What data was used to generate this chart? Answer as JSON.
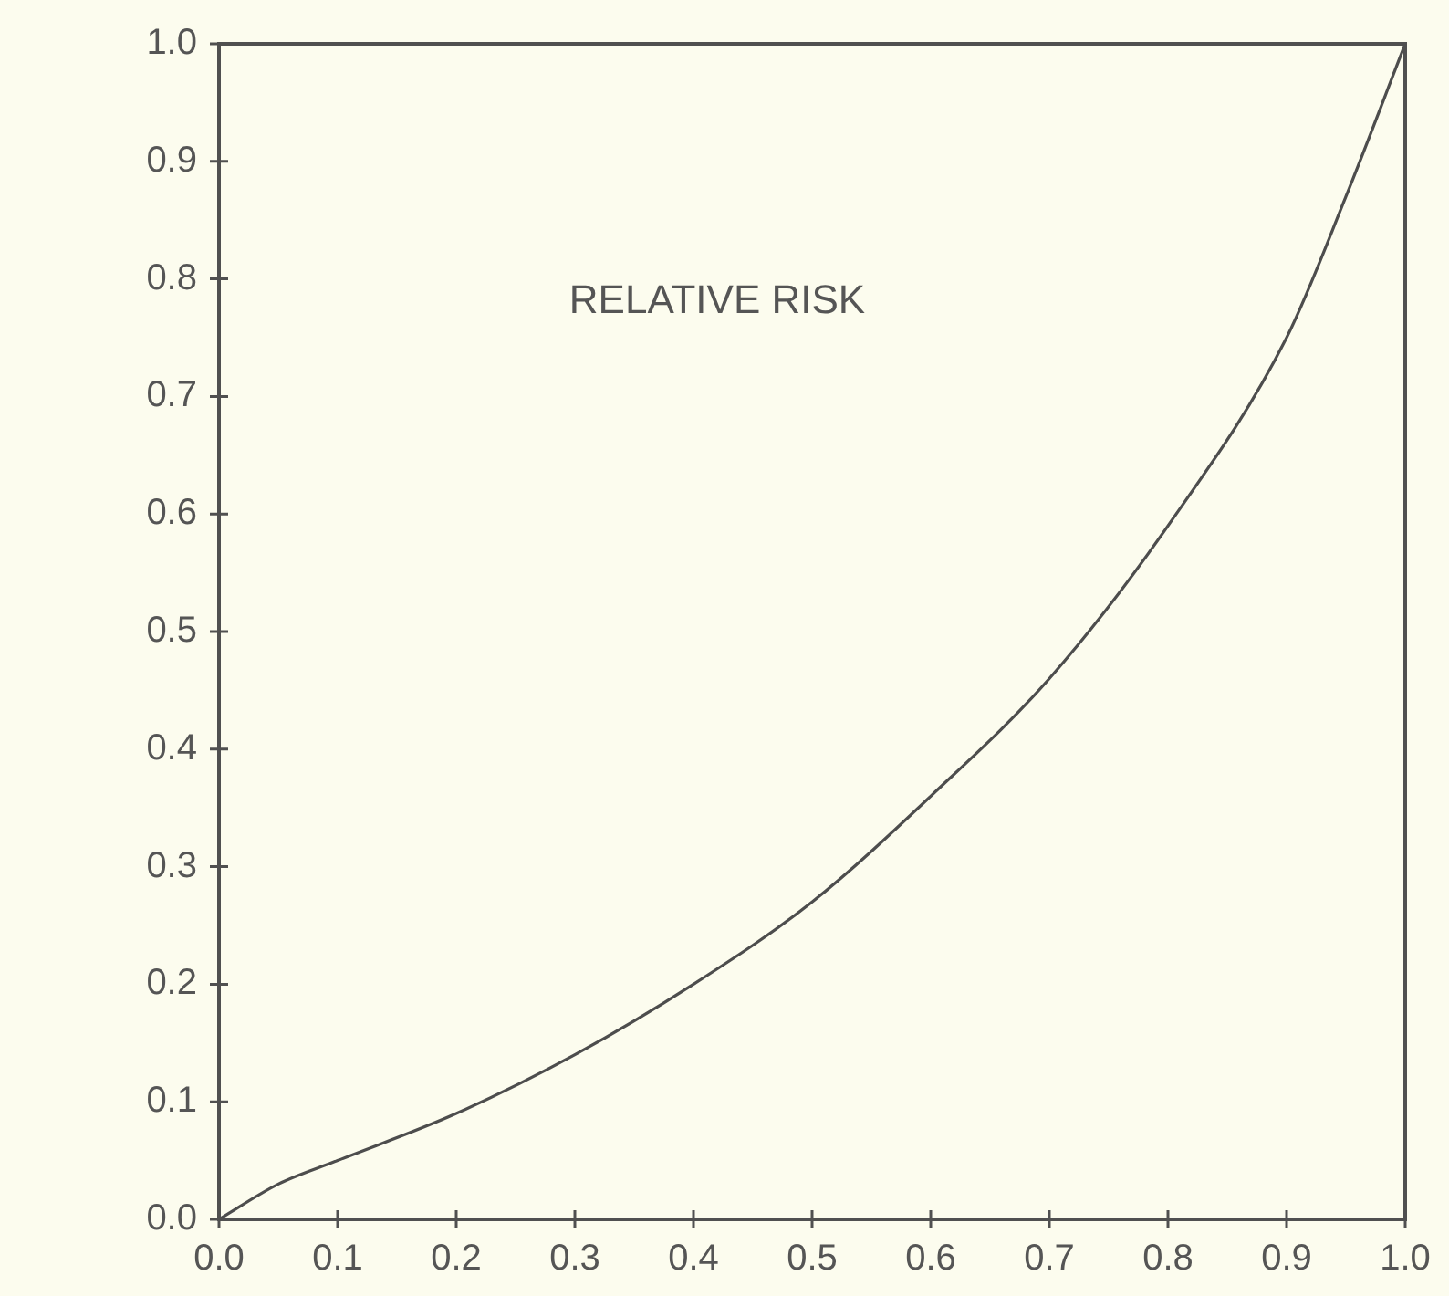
{
  "chart_data": {
    "type": "line",
    "title": "RELATIVE RISK",
    "x": [
      0,
      0.05,
      0.1,
      0.2,
      0.3,
      0.4,
      0.5,
      0.6,
      0.7,
      0.8,
      0.9,
      0.95,
      1
    ],
    "values": [
      0,
      0.03,
      0.05,
      0.09,
      0.14,
      0.2,
      0.27,
      0.36,
      0.46,
      0.59,
      0.75,
      0.87,
      1
    ],
    "color": "#4d4d4d",
    "xlim": [
      0,
      1
    ],
    "ylim": [
      0,
      1
    ],
    "xticks": [
      {
        "value": 0,
        "label": "0.0"
      },
      0.1,
      0.2,
      0.3,
      0.4,
      0.5,
      0.6,
      0.7,
      0.8,
      0.9,
      {
        "value": 1,
        "label": "1.0"
      }
    ],
    "yticks": [
      {
        "value": 0,
        "label": "0.0"
      },
      0.1,
      0.2,
      0.3,
      0.4,
      0.5,
      0.6,
      0.7,
      0.8,
      0.9,
      {
        "value": 1,
        "label": "1.0"
      }
    ]
  }
}
